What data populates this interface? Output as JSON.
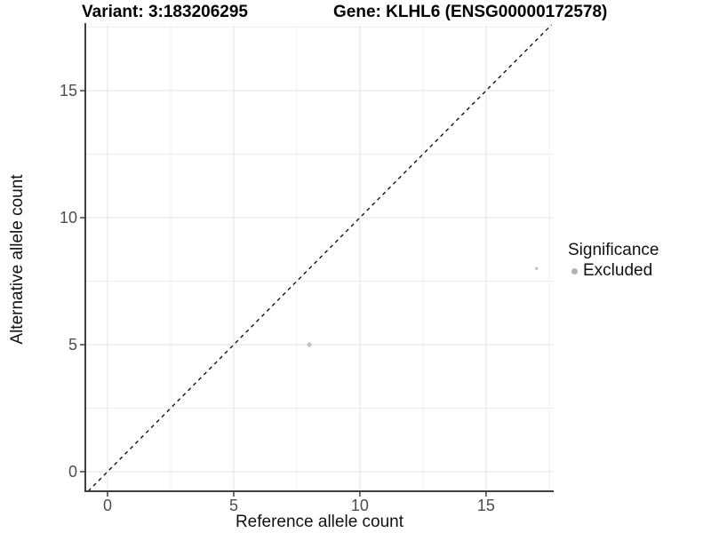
{
  "chart_data": {
    "type": "scatter",
    "titles": [
      "Variant: 3:183206295",
      "Gene: KLHL6 (ENSG00000172578)"
    ],
    "xlabel": "Reference allele count",
    "ylabel": "Alternative allele count",
    "xlim": [
      -0.88,
      17.68
    ],
    "ylim": [
      -0.77,
      17.59
    ],
    "x_ticks": [
      0,
      5,
      10,
      15
    ],
    "y_ticks": [
      0,
      5,
      10,
      15
    ],
    "x_minor_gridlines": [
      2.5,
      7.5,
      12.5,
      17.5
    ],
    "y_minor_gridlines": [
      2.5,
      7.5,
      12.5,
      17.5
    ],
    "grid": true,
    "points": [
      {
        "x": 8,
        "y": 5,
        "significance": "Excluded",
        "radius_px": 2.6
      },
      {
        "x": 17,
        "y": 8,
        "significance": "Excluded",
        "radius_px": 1.7
      }
    ],
    "identity_line": {
      "slope": 1,
      "intercept": 0,
      "style": "dashed"
    },
    "legend": {
      "position": "right",
      "title": "Significance",
      "items": [
        {
          "label": "Excluded",
          "color": "#b3b3b3"
        }
      ]
    }
  },
  "colors": {
    "point_fill": "#c3c3c3",
    "grid_major": "#e3e3e3",
    "grid_minor": "#efefef",
    "axis_line": "#3f3f3f",
    "tick_mark": "#333333",
    "tick_label": "#4d4d4d",
    "identity_line": "#111111",
    "background": "#ffffff"
  }
}
